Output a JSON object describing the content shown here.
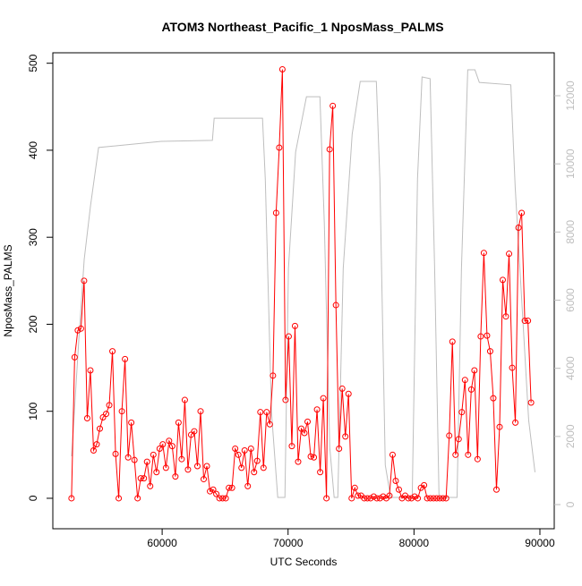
{
  "chart_data": {
    "type": "line",
    "title": "ATOM3 Northeast_Pacific_1 NposMass_PALMS",
    "xlabel": "UTC Seconds",
    "ylabel": "NposMass_PALMS",
    "xlim": [
      51317,
      91139
    ],
    "xticks": [
      60000,
      70000,
      80000,
      90000
    ],
    "ylim": [
      -35,
      512
    ],
    "yticks": [
      0,
      100,
      200,
      300,
      400,
      500
    ],
    "y2lim": [
      -709,
      13260
    ],
    "y2ticks": [
      0,
      2000,
      4000,
      6000,
      8000,
      10000,
      12000
    ],
    "y2color": "#bebebe",
    "series": [
      {
        "color": "#bebebe",
        "axis": "y2",
        "markers": false,
        "x": [
          52810,
          53380,
          53810,
          54310,
          54950,
          59930,
          63990,
          64130,
          67970,
          68190,
          68680,
          69180,
          69750,
          70030,
          70600,
          71460,
          72530,
          72880,
          73310,
          73660,
          73950,
          74380,
          75090,
          75730,
          77010,
          77290,
          77720,
          78150,
          79860,
          80280,
          80640,
          81280,
          81640,
          81990,
          83420,
          83770,
          84270,
          84840,
          85190,
          87690,
          88040,
          89110,
          89610
        ],
        "values": [
          1420,
          4830,
          7200,
          8770,
          10480,
          10660,
          10690,
          11340,
          11340,
          9560,
          2730,
          210,
          210,
          6930,
          10350,
          11970,
          11970,
          8240,
          1680,
          210,
          210,
          6930,
          10870,
          12420,
          12420,
          9560,
          1160,
          210,
          210,
          9560,
          12550,
          12500,
          6930,
          210,
          210,
          6930,
          12760,
          12760,
          12390,
          12320,
          9300,
          2470,
          950
        ]
      },
      {
        "color": "#ff0000",
        "markers": true,
        "x": [
          52800,
          53050,
          53300,
          53550,
          53800,
          54050,
          54300,
          54550,
          54800,
          55050,
          55300,
          55550,
          55800,
          56050,
          56300,
          56550,
          56800,
          57050,
          57300,
          57550,
          57800,
          58050,
          58300,
          58550,
          58800,
          59050,
          59300,
          59550,
          59800,
          60050,
          60300,
          60550,
          60800,
          61050,
          61300,
          61550,
          61800,
          62050,
          62300,
          62550,
          62800,
          63050,
          63300,
          63550,
          63800,
          64050,
          64300,
          64550,
          64800,
          65050,
          65300,
          65550,
          65800,
          66050,
          66300,
          66550,
          66800,
          67050,
          67300,
          67550,
          67800,
          68050,
          68300,
          68550,
          68800,
          69050,
          69300,
          69550,
          69800,
          70050,
          70300,
          70550,
          70800,
          71050,
          71300,
          71550,
          71800,
          72050,
          72300,
          72550,
          72800,
          73050,
          73300,
          73550,
          73800,
          74050,
          74300,
          74550,
          74800,
          75050,
          75300,
          75550,
          75800,
          76050,
          76300,
          76550,
          76800,
          77050,
          77300,
          77550,
          77800,
          78050,
          78300,
          78550,
          78800,
          79050,
          79300,
          79550,
          79800,
          80050,
          80300,
          80550,
          80800,
          81050,
          81300,
          81550,
          81800,
          82050,
          82300,
          82550,
          82800,
          83050,
          83300,
          83550,
          83800,
          84050,
          84300,
          84550,
          84800,
          85050,
          85300,
          85550,
          85800,
          86050,
          86300,
          86550,
          86800,
          87050,
          87300,
          87550,
          87800,
          88050,
          88300,
          88550,
          88800,
          89050,
          89300
        ],
        "values": [
          0,
          162,
          193,
          195,
          250,
          92,
          147,
          55,
          62,
          80,
          93,
          97,
          107,
          169,
          51,
          0,
          100,
          160,
          47,
          87,
          44,
          0,
          23,
          23,
          42,
          14,
          50,
          30,
          57,
          62,
          35,
          66,
          60,
          25,
          87,
          45,
          113,
          33,
          73,
          77,
          37,
          100,
          22,
          37,
          8,
          10,
          5,
          0,
          0,
          0,
          12,
          12,
          57,
          50,
          35,
          55,
          14,
          57,
          30,
          43,
          99,
          35,
          99,
          85,
          141,
          328,
          403,
          493,
          113,
          186,
          60,
          198,
          42,
          80,
          75,
          88,
          48,
          47,
          102,
          30,
          115,
          0,
          401,
          451,
          222,
          57,
          126,
          71,
          120,
          0,
          12,
          3,
          3,
          0,
          0,
          0,
          2,
          0,
          0,
          2,
          0,
          3,
          50,
          20,
          10,
          0,
          3,
          0,
          0,
          2,
          0,
          12,
          15,
          0,
          0,
          0,
          0,
          0,
          0,
          0,
          72,
          180,
          50,
          68,
          99,
          136,
          50,
          125,
          147,
          45,
          186,
          282,
          187,
          169,
          115,
          10,
          82,
          251,
          209,
          281,
          150,
          87,
          311,
          328,
          204,
          204,
          110
        ]
      }
    ]
  }
}
